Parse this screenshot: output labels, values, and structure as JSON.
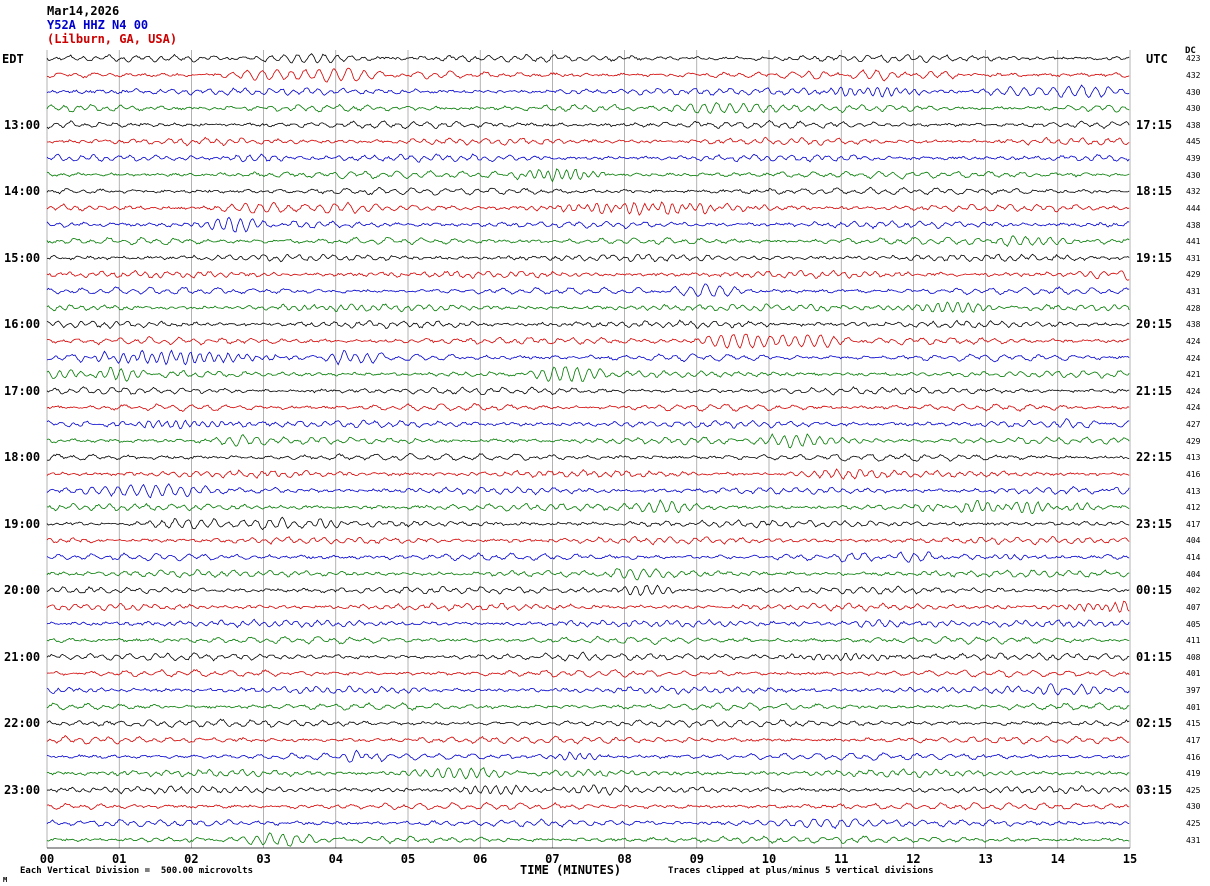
{
  "title": {
    "date": "Mar14,2026",
    "station": "Y52A HHZ N4 00",
    "location": "(Lilburn, GA, USA)",
    "date_color": "#000000",
    "station_color": "#0000cc",
    "location_color": "#cc0000"
  },
  "axes": {
    "left_label": "EDT",
    "right_label": "UTC",
    "dc_label": "DC",
    "x_label": "TIME (MINUTES)"
  },
  "x_ticks": [
    "00",
    "01",
    "02",
    "03",
    "04",
    "05",
    "06",
    "07",
    "08",
    "09",
    "10",
    "11",
    "12",
    "13",
    "14",
    "15"
  ],
  "footer": {
    "scale_note": "Each Vertical Division =  500.00 microvolts",
    "clip_note": "Traces clipped at plus/minus 5 vertical divisions",
    "corner_mark": "M"
  },
  "chart_data": {
    "type": "line",
    "subtype": "seismogram-helicorder",
    "minutes_per_row": 15,
    "x_range_minutes": [
      0,
      15
    ],
    "grid": "vertical-minute-lines",
    "trace_colors": {
      "black": "#000000",
      "red": "#d40000",
      "blue": "#0000cc",
      "green": "#007a00"
    },
    "gridline_color": "#808080",
    "rows": [
      {
        "color": "black",
        "edt": "",
        "utc": "",
        "dc": "423"
      },
      {
        "color": "red",
        "edt": "",
        "utc": "",
        "dc": "432"
      },
      {
        "color": "blue",
        "edt": "",
        "utc": "",
        "dc": "430"
      },
      {
        "color": "green",
        "edt": "",
        "utc": "",
        "dc": "430"
      },
      {
        "color": "black",
        "edt": "13:00",
        "utc": "17:15",
        "dc": "438"
      },
      {
        "color": "red",
        "edt": "",
        "utc": "",
        "dc": "445"
      },
      {
        "color": "blue",
        "edt": "",
        "utc": "",
        "dc": "439"
      },
      {
        "color": "green",
        "edt": "",
        "utc": "",
        "dc": "430"
      },
      {
        "color": "black",
        "edt": "14:00",
        "utc": "18:15",
        "dc": "432"
      },
      {
        "color": "red",
        "edt": "",
        "utc": "",
        "dc": "444"
      },
      {
        "color": "blue",
        "edt": "",
        "utc": "",
        "dc": "438"
      },
      {
        "color": "green",
        "edt": "",
        "utc": "",
        "dc": "441"
      },
      {
        "color": "black",
        "edt": "15:00",
        "utc": "19:15",
        "dc": "431"
      },
      {
        "color": "red",
        "edt": "",
        "utc": "",
        "dc": "429"
      },
      {
        "color": "blue",
        "edt": "",
        "utc": "",
        "dc": "431"
      },
      {
        "color": "green",
        "edt": "",
        "utc": "",
        "dc": "428"
      },
      {
        "color": "black",
        "edt": "16:00",
        "utc": "20:15",
        "dc": "438"
      },
      {
        "color": "red",
        "edt": "",
        "utc": "",
        "dc": "424"
      },
      {
        "color": "blue",
        "edt": "",
        "utc": "",
        "dc": "424"
      },
      {
        "color": "green",
        "edt": "",
        "utc": "",
        "dc": "421"
      },
      {
        "color": "black",
        "edt": "17:00",
        "utc": "21:15",
        "dc": "424"
      },
      {
        "color": "red",
        "edt": "",
        "utc": "",
        "dc": "424"
      },
      {
        "color": "blue",
        "edt": "",
        "utc": "",
        "dc": "427"
      },
      {
        "color": "green",
        "edt": "",
        "utc": "",
        "dc": "429"
      },
      {
        "color": "black",
        "edt": "18:00",
        "utc": "22:15",
        "dc": "413"
      },
      {
        "color": "red",
        "edt": "",
        "utc": "",
        "dc": "416"
      },
      {
        "color": "blue",
        "edt": "",
        "utc": "",
        "dc": "413"
      },
      {
        "color": "green",
        "edt": "",
        "utc": "",
        "dc": "412"
      },
      {
        "color": "black",
        "edt": "19:00",
        "utc": "23:15",
        "dc": "417"
      },
      {
        "color": "red",
        "edt": "",
        "utc": "",
        "dc": "404"
      },
      {
        "color": "blue",
        "edt": "",
        "utc": "",
        "dc": "414"
      },
      {
        "color": "green",
        "edt": "",
        "utc": "",
        "dc": "404"
      },
      {
        "color": "black",
        "edt": "20:00",
        "utc": "00:15",
        "dc": "402"
      },
      {
        "color": "red",
        "edt": "",
        "utc": "",
        "dc": "407"
      },
      {
        "color": "blue",
        "edt": "",
        "utc": "",
        "dc": "405"
      },
      {
        "color": "green",
        "edt": "",
        "utc": "",
        "dc": "411"
      },
      {
        "color": "black",
        "edt": "21:00",
        "utc": "01:15",
        "dc": "408"
      },
      {
        "color": "red",
        "edt": "",
        "utc": "",
        "dc": "401"
      },
      {
        "color": "blue",
        "edt": "",
        "utc": "",
        "dc": "397"
      },
      {
        "color": "green",
        "edt": "",
        "utc": "",
        "dc": "401"
      },
      {
        "color": "black",
        "edt": "22:00",
        "utc": "02:15",
        "dc": "415"
      },
      {
        "color": "red",
        "edt": "",
        "utc": "",
        "dc": "417"
      },
      {
        "color": "blue",
        "edt": "",
        "utc": "",
        "dc": "416"
      },
      {
        "color": "green",
        "edt": "",
        "utc": "",
        "dc": "419"
      },
      {
        "color": "black",
        "edt": "23:00",
        "utc": "03:15",
        "dc": "425"
      },
      {
        "color": "red",
        "edt": "",
        "utc": "",
        "dc": "430"
      },
      {
        "color": "blue",
        "edt": "",
        "utc": "",
        "dc": "425"
      },
      {
        "color": "green",
        "edt": "",
        "utc": "",
        "dc": "431"
      }
    ]
  }
}
